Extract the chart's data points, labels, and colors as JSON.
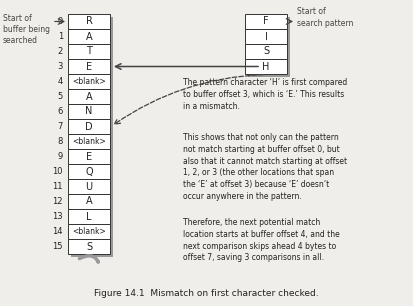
{
  "title": "Figure 14.1  Mismatch on first character checked.",
  "buffer_values": [
    "R",
    "A",
    "T",
    "E",
    "<blank>",
    "A",
    "N",
    "D",
    "<blank>",
    "E",
    "Q",
    "U",
    "A",
    "L",
    "<blank>",
    "S"
  ],
  "pattern_values": [
    "F",
    "I",
    "S",
    "H"
  ],
  "bg_color": "#f0eeea",
  "box_fill": "#ffffff",
  "box_edge": "#333333",
  "shadow_color": "#999999",
  "text_color": "#222222",
  "label_color": "#444444",
  "arrow_color": "#444444",
  "annotation_text1": "The pattern character ‘H’ is first compared\nto buffer offset 3, which is ‘E.’ This results\nin a mismatch.",
  "annotation_text2": "This shows that not only can the pattern\nnot match starting at buffer offset 0, but\nalso that it cannot match starting at offset\n1, 2, or 3 (the other locations that span\nthe ‘E’ at offset 3) because ‘E’ doesn’t\noccur anywhere in the pattern.",
  "annotation_text3": "Therefore, the next potential match\nlocation starts at buffer offset 4, and the\nnext comparison skips ahead 4 bytes to\noffset 7, saving 3 comparisons in all.",
  "start_buffer_label": "Start of\nbuffer being\nsearched",
  "start_pattern_label": "Start of\nsearch pattern"
}
